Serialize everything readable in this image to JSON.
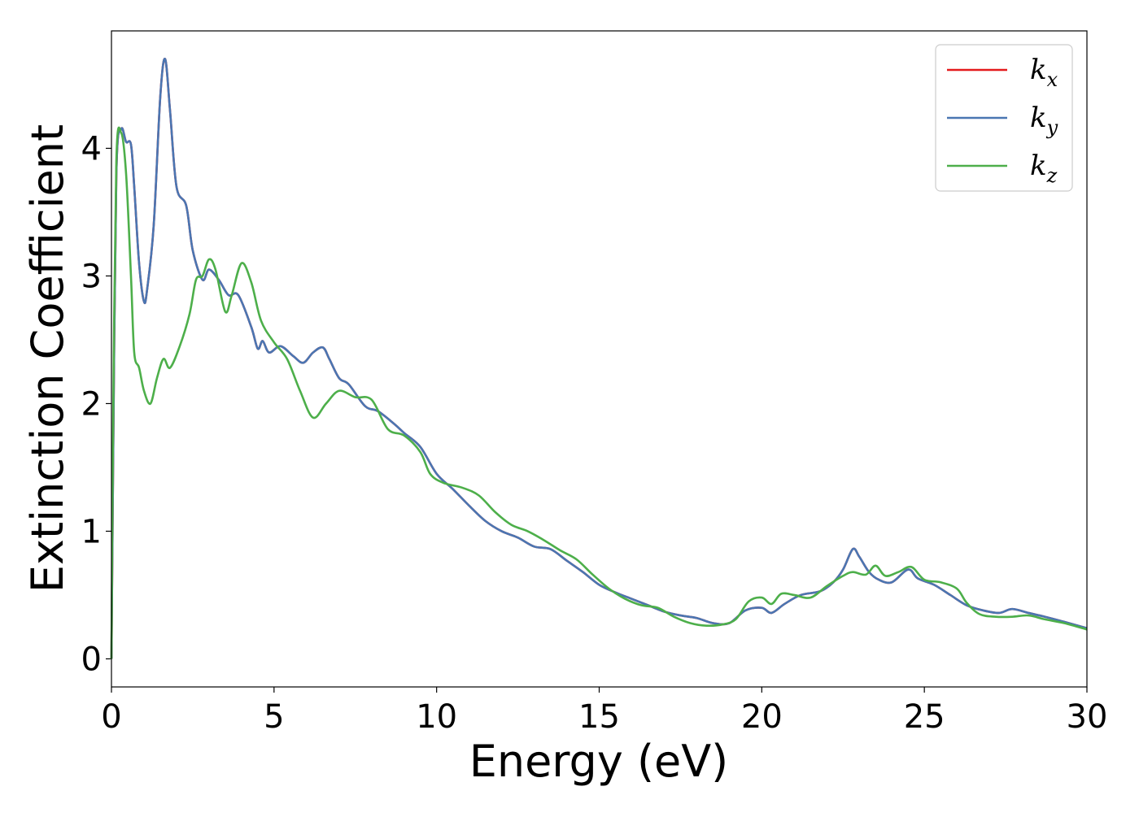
{
  "chart_data": {
    "type": "line",
    "xlabel": "Energy (eV)",
    "ylabel": "Extinction Coefficient",
    "xlim": [
      0,
      30
    ],
    "ylim": [
      -0.22,
      4.92
    ],
    "xticks": [
      0,
      5,
      10,
      15,
      20,
      25,
      30
    ],
    "xtick_labels": [
      "0",
      "5",
      "10",
      "15",
      "20",
      "25",
      "30"
    ],
    "yticks": [
      0,
      1,
      2,
      3,
      4
    ],
    "ytick_labels": [
      "0",
      "1",
      "2",
      "3",
      "4"
    ],
    "grid": false,
    "legend_position": "top-right",
    "series": [
      {
        "key": "kx",
        "name": "k",
        "subscript": "x",
        "color": "#e41a1c",
        "points": [
          [
            0,
            0
          ],
          [
            0.05,
            1.5
          ],
          [
            0.15,
            3.8
          ],
          [
            0.3,
            4.15
          ],
          [
            0.45,
            4.05
          ],
          [
            0.6,
            4.03
          ],
          [
            0.7,
            3.7
          ],
          [
            0.85,
            3.1
          ],
          [
            1.0,
            2.8
          ],
          [
            1.1,
            2.9
          ],
          [
            1.3,
            3.4
          ],
          [
            1.5,
            4.4
          ],
          [
            1.65,
            4.7
          ],
          [
            1.8,
            4.3
          ],
          [
            2.0,
            3.7
          ],
          [
            2.3,
            3.55
          ],
          [
            2.5,
            3.2
          ],
          [
            2.8,
            2.97
          ],
          [
            3.0,
            3.05
          ],
          [
            3.3,
            2.97
          ],
          [
            3.6,
            2.85
          ],
          [
            3.9,
            2.85
          ],
          [
            4.3,
            2.6
          ],
          [
            4.5,
            2.43
          ],
          [
            4.65,
            2.49
          ],
          [
            4.85,
            2.4
          ],
          [
            5.2,
            2.45
          ],
          [
            5.6,
            2.37
          ],
          [
            5.9,
            2.32
          ],
          [
            6.2,
            2.4
          ],
          [
            6.5,
            2.44
          ],
          [
            6.7,
            2.35
          ],
          [
            7.0,
            2.2
          ],
          [
            7.3,
            2.15
          ],
          [
            7.8,
            1.98
          ],
          [
            8.2,
            1.94
          ],
          [
            8.7,
            1.84
          ],
          [
            9.0,
            1.77
          ],
          [
            9.5,
            1.66
          ],
          [
            10.0,
            1.45
          ],
          [
            10.5,
            1.33
          ],
          [
            11.0,
            1.2
          ],
          [
            11.5,
            1.08
          ],
          [
            12.0,
            1.0
          ],
          [
            12.5,
            0.95
          ],
          [
            13.0,
            0.88
          ],
          [
            13.5,
            0.86
          ],
          [
            14.0,
            0.77
          ],
          [
            14.5,
            0.68
          ],
          [
            15.0,
            0.58
          ],
          [
            15.5,
            0.52
          ],
          [
            16.0,
            0.47
          ],
          [
            16.5,
            0.42
          ],
          [
            17.0,
            0.37
          ],
          [
            17.5,
            0.34
          ],
          [
            18.0,
            0.32
          ],
          [
            18.5,
            0.28
          ],
          [
            19.0,
            0.28
          ],
          [
            19.5,
            0.38
          ],
          [
            20.0,
            0.4
          ],
          [
            20.3,
            0.36
          ],
          [
            20.7,
            0.43
          ],
          [
            21.2,
            0.5
          ],
          [
            21.8,
            0.53
          ],
          [
            22.2,
            0.6
          ],
          [
            22.5,
            0.7
          ],
          [
            22.8,
            0.86
          ],
          [
            23.0,
            0.8
          ],
          [
            23.3,
            0.68
          ],
          [
            23.6,
            0.62
          ],
          [
            24.0,
            0.6
          ],
          [
            24.5,
            0.7
          ],
          [
            24.8,
            0.63
          ],
          [
            25.3,
            0.58
          ],
          [
            25.8,
            0.5
          ],
          [
            26.3,
            0.42
          ],
          [
            26.8,
            0.38
          ],
          [
            27.3,
            0.36
          ],
          [
            27.7,
            0.39
          ],
          [
            28.2,
            0.36
          ],
          [
            28.7,
            0.33
          ],
          [
            29.3,
            0.29
          ],
          [
            30,
            0.24
          ]
        ]
      },
      {
        "key": "ky",
        "name": "k",
        "subscript": "y",
        "color": "#4a76b2",
        "points": [
          [
            0,
            0
          ],
          [
            0.05,
            1.5
          ],
          [
            0.15,
            3.8
          ],
          [
            0.3,
            4.15
          ],
          [
            0.45,
            4.05
          ],
          [
            0.6,
            4.03
          ],
          [
            0.7,
            3.7
          ],
          [
            0.85,
            3.1
          ],
          [
            1.0,
            2.8
          ],
          [
            1.1,
            2.9
          ],
          [
            1.3,
            3.4
          ],
          [
            1.5,
            4.4
          ],
          [
            1.65,
            4.7
          ],
          [
            1.8,
            4.3
          ],
          [
            2.0,
            3.7
          ],
          [
            2.3,
            3.55
          ],
          [
            2.5,
            3.2
          ],
          [
            2.8,
            2.97
          ],
          [
            3.0,
            3.05
          ],
          [
            3.3,
            2.97
          ],
          [
            3.6,
            2.85
          ],
          [
            3.9,
            2.85
          ],
          [
            4.3,
            2.6
          ],
          [
            4.5,
            2.43
          ],
          [
            4.65,
            2.49
          ],
          [
            4.85,
            2.4
          ],
          [
            5.2,
            2.45
          ],
          [
            5.6,
            2.37
          ],
          [
            5.9,
            2.32
          ],
          [
            6.2,
            2.4
          ],
          [
            6.5,
            2.44
          ],
          [
            6.7,
            2.35
          ],
          [
            7.0,
            2.2
          ],
          [
            7.3,
            2.15
          ],
          [
            7.8,
            1.98
          ],
          [
            8.2,
            1.94
          ],
          [
            8.7,
            1.84
          ],
          [
            9.0,
            1.77
          ],
          [
            9.5,
            1.66
          ],
          [
            10.0,
            1.45
          ],
          [
            10.5,
            1.33
          ],
          [
            11.0,
            1.2
          ],
          [
            11.5,
            1.08
          ],
          [
            12.0,
            1.0
          ],
          [
            12.5,
            0.95
          ],
          [
            13.0,
            0.88
          ],
          [
            13.5,
            0.86
          ],
          [
            14.0,
            0.77
          ],
          [
            14.5,
            0.68
          ],
          [
            15.0,
            0.58
          ],
          [
            15.5,
            0.52
          ],
          [
            16.0,
            0.47
          ],
          [
            16.5,
            0.42
          ],
          [
            17.0,
            0.37
          ],
          [
            17.5,
            0.34
          ],
          [
            18.0,
            0.32
          ],
          [
            18.5,
            0.28
          ],
          [
            19.0,
            0.28
          ],
          [
            19.5,
            0.38
          ],
          [
            20.0,
            0.4
          ],
          [
            20.3,
            0.36
          ],
          [
            20.7,
            0.43
          ],
          [
            21.2,
            0.5
          ],
          [
            21.8,
            0.53
          ],
          [
            22.2,
            0.6
          ],
          [
            22.5,
            0.7
          ],
          [
            22.8,
            0.86
          ],
          [
            23.0,
            0.8
          ],
          [
            23.3,
            0.68
          ],
          [
            23.6,
            0.62
          ],
          [
            24.0,
            0.6
          ],
          [
            24.5,
            0.7
          ],
          [
            24.8,
            0.63
          ],
          [
            25.3,
            0.58
          ],
          [
            25.8,
            0.5
          ],
          [
            26.3,
            0.42
          ],
          [
            26.8,
            0.38
          ],
          [
            27.3,
            0.36
          ],
          [
            27.7,
            0.39
          ],
          [
            28.2,
            0.36
          ],
          [
            28.7,
            0.33
          ],
          [
            29.3,
            0.29
          ],
          [
            30,
            0.24
          ]
        ]
      },
      {
        "key": "kz",
        "name": "k",
        "subscript": "z",
        "color": "#4daf4a",
        "points": [
          [
            0,
            0
          ],
          [
            0.05,
            1.8
          ],
          [
            0.15,
            3.9
          ],
          [
            0.3,
            4.12
          ],
          [
            0.45,
            3.8
          ],
          [
            0.6,
            3.0
          ],
          [
            0.7,
            2.4
          ],
          [
            0.85,
            2.28
          ],
          [
            1.0,
            2.1
          ],
          [
            1.2,
            2.0
          ],
          [
            1.4,
            2.2
          ],
          [
            1.6,
            2.35
          ],
          [
            1.8,
            2.28
          ],
          [
            2.1,
            2.45
          ],
          [
            2.4,
            2.7
          ],
          [
            2.6,
            2.97
          ],
          [
            2.8,
            3.0
          ],
          [
            3.0,
            3.13
          ],
          [
            3.2,
            3.05
          ],
          [
            3.5,
            2.72
          ],
          [
            3.7,
            2.85
          ],
          [
            4.0,
            3.1
          ],
          [
            4.3,
            2.95
          ],
          [
            4.6,
            2.65
          ],
          [
            5.0,
            2.48
          ],
          [
            5.4,
            2.35
          ],
          [
            5.8,
            2.1
          ],
          [
            6.2,
            1.89
          ],
          [
            6.6,
            2.0
          ],
          [
            7.0,
            2.1
          ],
          [
            7.5,
            2.05
          ],
          [
            8.0,
            2.03
          ],
          [
            8.5,
            1.8
          ],
          [
            9.0,
            1.75
          ],
          [
            9.5,
            1.62
          ],
          [
            9.8,
            1.45
          ],
          [
            10.2,
            1.38
          ],
          [
            10.8,
            1.34
          ],
          [
            11.3,
            1.28
          ],
          [
            11.8,
            1.15
          ],
          [
            12.3,
            1.05
          ],
          [
            12.8,
            1.0
          ],
          [
            13.3,
            0.93
          ],
          [
            13.8,
            0.85
          ],
          [
            14.3,
            0.78
          ],
          [
            14.8,
            0.66
          ],
          [
            15.3,
            0.55
          ],
          [
            15.8,
            0.47
          ],
          [
            16.3,
            0.42
          ],
          [
            16.8,
            0.4
          ],
          [
            17.3,
            0.33
          ],
          [
            17.8,
            0.28
          ],
          [
            18.3,
            0.26
          ],
          [
            18.8,
            0.27
          ],
          [
            19.2,
            0.31
          ],
          [
            19.6,
            0.45
          ],
          [
            20.0,
            0.48
          ],
          [
            20.3,
            0.43
          ],
          [
            20.6,
            0.51
          ],
          [
            21.0,
            0.5
          ],
          [
            21.5,
            0.48
          ],
          [
            22.0,
            0.57
          ],
          [
            22.5,
            0.65
          ],
          [
            22.8,
            0.68
          ],
          [
            23.2,
            0.66
          ],
          [
            23.5,
            0.73
          ],
          [
            23.8,
            0.65
          ],
          [
            24.2,
            0.68
          ],
          [
            24.6,
            0.72
          ],
          [
            25.0,
            0.62
          ],
          [
            25.5,
            0.6
          ],
          [
            26.0,
            0.55
          ],
          [
            26.3,
            0.44
          ],
          [
            26.7,
            0.35
          ],
          [
            27.2,
            0.33
          ],
          [
            27.7,
            0.33
          ],
          [
            28.2,
            0.34
          ],
          [
            28.7,
            0.31
          ],
          [
            29.3,
            0.28
          ],
          [
            30,
            0.23
          ]
        ]
      }
    ]
  }
}
